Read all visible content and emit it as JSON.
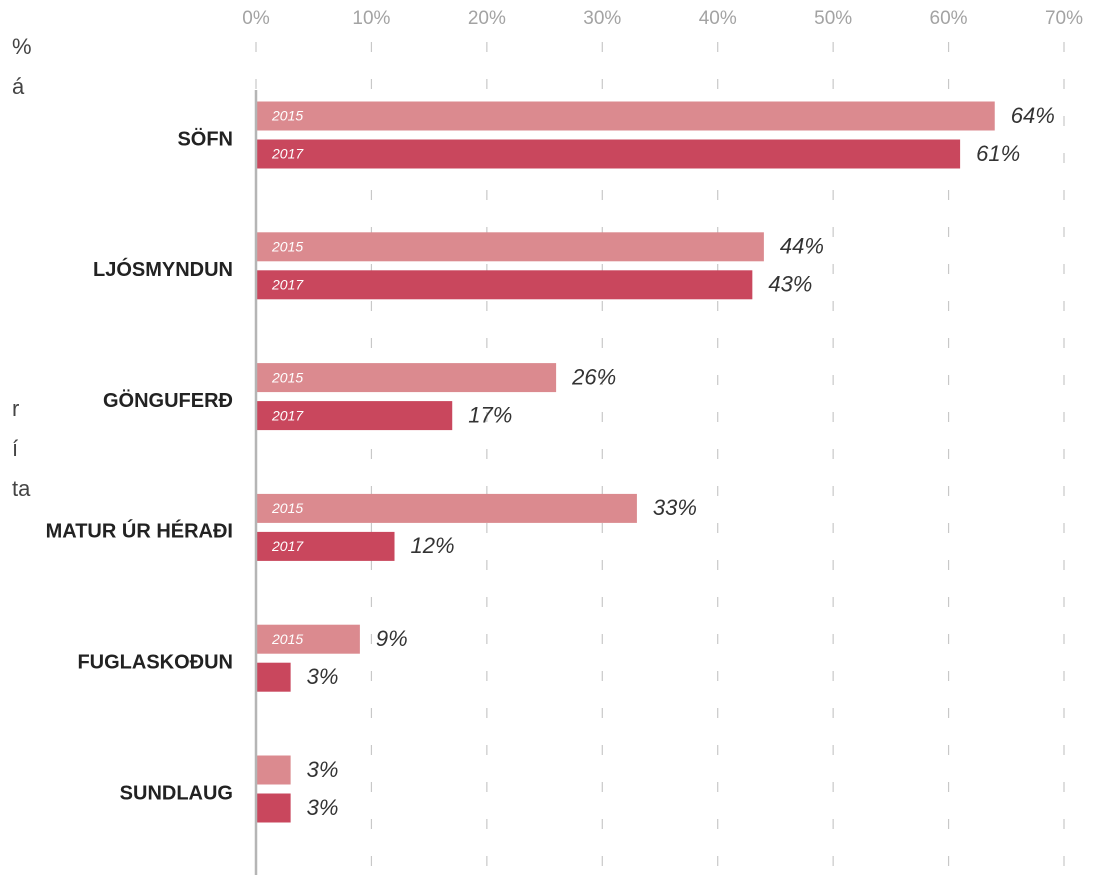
{
  "chart_data": {
    "type": "barh",
    "categories": [
      "SÖFN",
      "LJÓSMYNDUN",
      "GÖNGUFERÐ",
      "MATUR ÚR HÉRAÐI",
      "FUGLASKOÐUN",
      "SUNDLAUG"
    ],
    "series": [
      {
        "name": "2015",
        "color": "#db8a8f",
        "values": [
          64,
          44,
          26,
          33,
          9,
          3
        ],
        "value_labels": [
          "64%",
          "44%",
          "26%",
          "33%",
          "9%",
          "3%"
        ]
      },
      {
        "name": "2017",
        "color": "#c9475d",
        "values": [
          61,
          43,
          17,
          12,
          3,
          3
        ],
        "value_labels": [
          "61%",
          "43%",
          "17%",
          "12%",
          "3%",
          "3%"
        ]
      }
    ],
    "xlim": [
      0,
      70
    ],
    "xticks": [
      {
        "value": 0,
        "label": "0%"
      },
      {
        "value": 10,
        "label": "10%"
      },
      {
        "value": 20,
        "label": "20%"
      },
      {
        "value": 30,
        "label": "30%"
      },
      {
        "value": 40,
        "label": "40%"
      },
      {
        "value": 50,
        "label": "50%"
      },
      {
        "value": 60,
        "label": "60%"
      },
      {
        "value": 70,
        "label": "70%"
      }
    ],
    "grid": true,
    "side_text": [
      "%",
      "á",
      "r",
      "í",
      "ta"
    ]
  }
}
